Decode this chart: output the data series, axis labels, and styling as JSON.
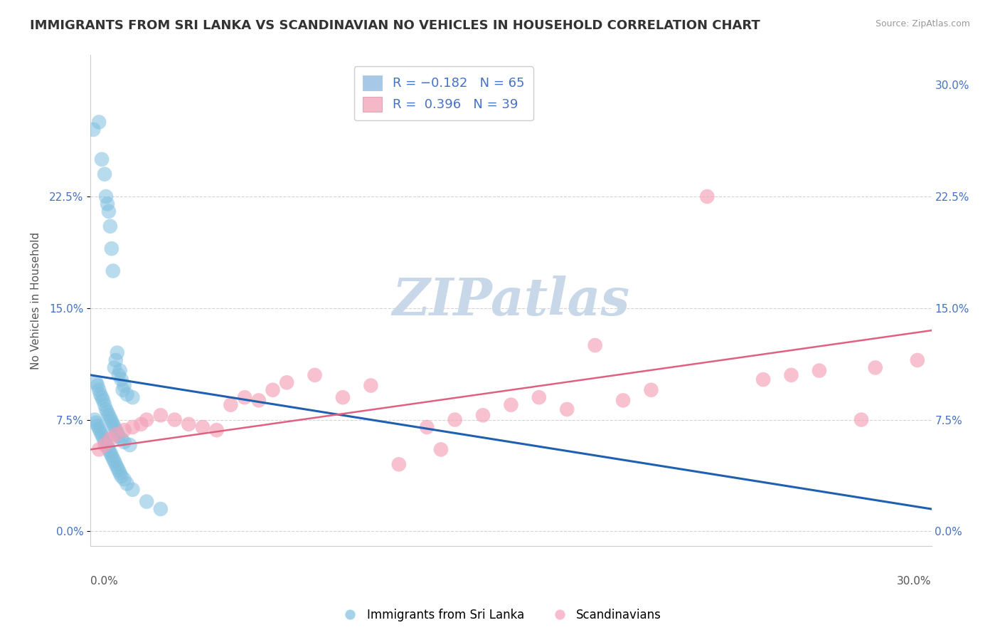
{
  "title": "IMMIGRANTS FROM SRI LANKA VS SCANDINAVIAN NO VEHICLES IN HOUSEHOLD CORRELATION CHART",
  "source": "Source: ZipAtlas.com",
  "ylabel": "No Vehicles in Household",
  "ytick_vals": [
    0.0,
    7.5,
    15.0,
    22.5,
    30.0
  ],
  "xlim": [
    0.0,
    30.0
  ],
  "ylim": [
    -1.0,
    32.0
  ],
  "legend_bottom": [
    "Immigrants from Sri Lanka",
    "Scandinavians"
  ],
  "watermark": "ZIPatlas",
  "blue_scatter_x": [
    0.1,
    0.3,
    0.4,
    0.5,
    0.55,
    0.6,
    0.65,
    0.7,
    0.75,
    0.8,
    0.85,
    0.9,
    0.95,
    1.0,
    1.05,
    1.1,
    1.15,
    1.2,
    1.3,
    1.5,
    0.2,
    0.25,
    0.3,
    0.35,
    0.4,
    0.45,
    0.5,
    0.55,
    0.6,
    0.65,
    0.7,
    0.75,
    0.8,
    0.85,
    0.9,
    0.95,
    1.0,
    1.1,
    1.2,
    1.4,
    0.15,
    0.2,
    0.25,
    0.3,
    0.35,
    0.4,
    0.45,
    0.5,
    0.55,
    0.6,
    0.65,
    0.7,
    0.75,
    0.8,
    0.85,
    0.9,
    0.95,
    1.0,
    1.05,
    1.1,
    1.2,
    1.3,
    1.5,
    2.0,
    2.5
  ],
  "blue_scatter_y": [
    27.0,
    27.5,
    25.0,
    24.0,
    22.5,
    22.0,
    21.5,
    20.5,
    19.0,
    17.5,
    11.0,
    11.5,
    12.0,
    10.5,
    10.8,
    10.2,
    9.5,
    9.8,
    9.2,
    9.0,
    10.0,
    9.8,
    9.5,
    9.2,
    9.0,
    8.8,
    8.5,
    8.2,
    8.0,
    7.8,
    7.6,
    7.4,
    7.2,
    7.0,
    6.8,
    6.6,
    6.4,
    6.2,
    6.0,
    5.8,
    7.5,
    7.3,
    7.1,
    6.9,
    6.7,
    6.5,
    6.3,
    6.1,
    5.9,
    5.7,
    5.5,
    5.3,
    5.1,
    4.9,
    4.7,
    4.5,
    4.3,
    4.1,
    3.9,
    3.7,
    3.5,
    3.2,
    2.8,
    2.0,
    1.5
  ],
  "pink_scatter_x": [
    0.3,
    0.5,
    0.7,
    0.9,
    1.2,
    1.5,
    1.8,
    2.0,
    2.5,
    3.0,
    3.5,
    4.0,
    4.5,
    5.0,
    5.5,
    6.0,
    6.5,
    7.0,
    8.0,
    9.0,
    10.0,
    11.0,
    12.0,
    12.5,
    13.0,
    14.0,
    15.0,
    16.0,
    17.0,
    18.0,
    19.0,
    20.0,
    22.0,
    24.0,
    25.0,
    26.0,
    27.5,
    28.0,
    29.5
  ],
  "pink_scatter_y": [
    5.5,
    5.8,
    6.2,
    6.5,
    6.8,
    7.0,
    7.2,
    7.5,
    7.8,
    7.5,
    7.2,
    7.0,
    6.8,
    8.5,
    9.0,
    8.8,
    9.5,
    10.0,
    10.5,
    9.0,
    9.8,
    4.5,
    7.0,
    5.5,
    7.5,
    7.8,
    8.5,
    9.0,
    8.2,
    12.5,
    8.8,
    9.5,
    22.5,
    10.2,
    10.5,
    10.8,
    7.5,
    11.0,
    11.5
  ],
  "blue_line_x": [
    0.0,
    30.0
  ],
  "blue_line_y": [
    10.5,
    1.5
  ],
  "pink_line_x": [
    0.0,
    30.0
  ],
  "pink_line_y": [
    5.5,
    13.5
  ],
  "blue_color": "#7fbfdf",
  "pink_color": "#f4a0b8",
  "blue_line_color": "#2060b0",
  "pink_line_color": "#e06080",
  "legend_blue_color": "#a8c8e8",
  "legend_pink_color": "#f4b8c8",
  "background_color": "#ffffff",
  "title_fontsize": 13,
  "watermark_color": "#c8d8e8",
  "watermark_fontsize": 52,
  "right_ytick_color": "#4472c4",
  "left_ytick_color": "#4472c4"
}
